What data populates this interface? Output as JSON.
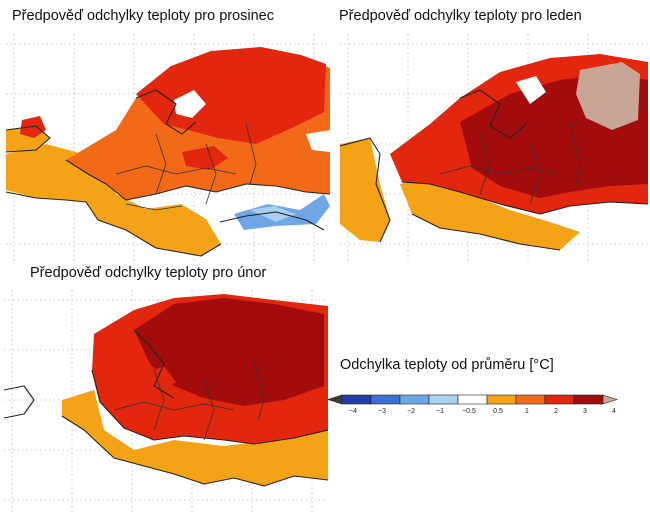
{
  "maps": [
    {
      "id": "december",
      "title": "Předpověď odchylky teploty pro prosinec"
    },
    {
      "id": "january",
      "title": "Předpověď odchylky teploty pro leden"
    },
    {
      "id": "february",
      "title": "Předpověď odchylky teploty pro únor"
    }
  ],
  "legend": {
    "title": "Odchylka teploty od průměru [°C]",
    "classes": [
      {
        "label": "< -4",
        "color": "#3a3a3a"
      },
      {
        "label": "-4 to -3",
        "color": "#1f3fa8"
      },
      {
        "label": "-3 to -2",
        "color": "#3d72d4"
      },
      {
        "label": "-2 to -1",
        "color": "#6fa6e6"
      },
      {
        "label": "-1 to -0.5",
        "color": "#a8d0f2"
      },
      {
        "label": "-0.5 to 0.5",
        "color": "#ffffff"
      },
      {
        "label": "0.5 to 1",
        "color": "#f5a316"
      },
      {
        "label": "1 to 2",
        "color": "#f26a18"
      },
      {
        "label": "2 to 3",
        "color": "#e3260e"
      },
      {
        "label": "3 to 4",
        "color": "#a30c0c"
      },
      {
        "label": "> 4",
        "color": "#c9a596"
      }
    ],
    "ticks": [
      "−4",
      "−3",
      "−2",
      "−1",
      "−0.5",
      "0.5",
      "1",
      "2",
      "3",
      "4"
    ]
  },
  "colors": {
    "gridlines": "#b8b8b8",
    "coastline": "#222222",
    "borders": "#333333"
  }
}
